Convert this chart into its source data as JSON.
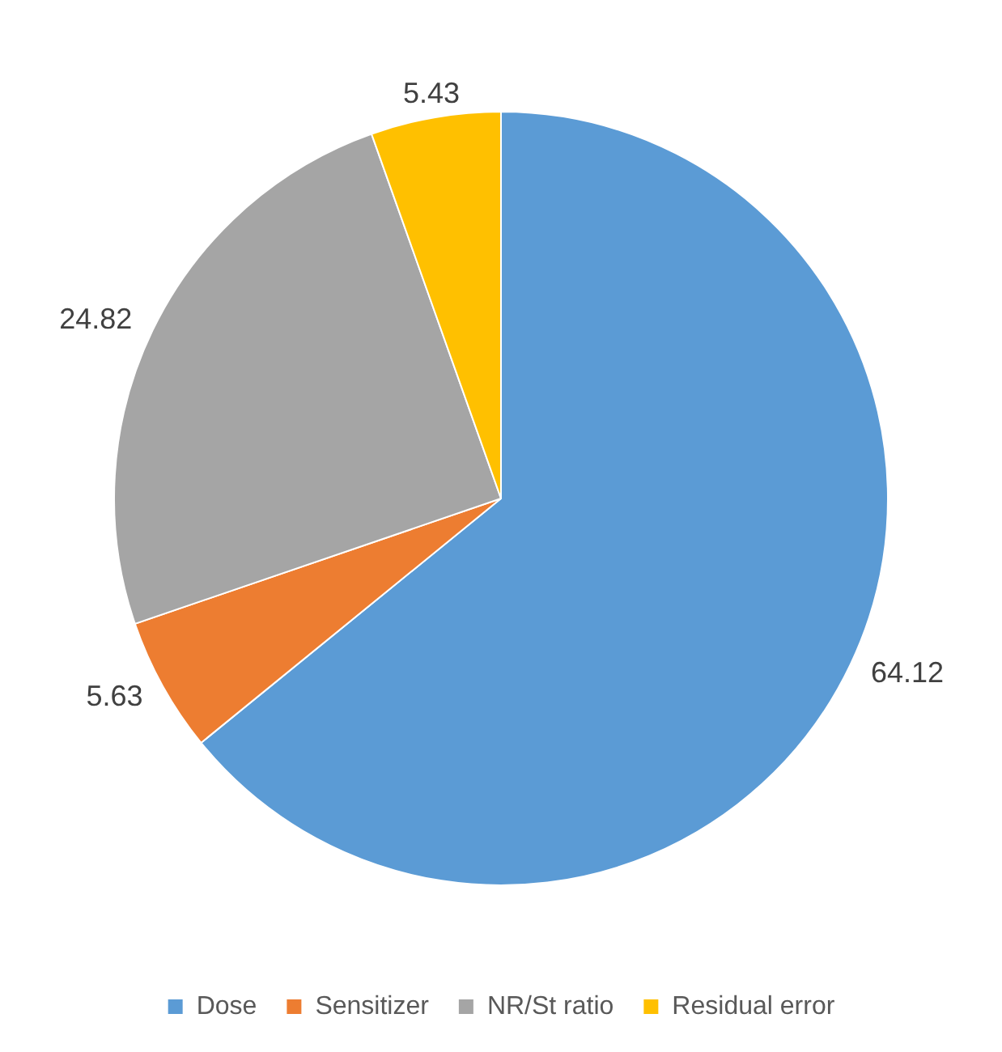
{
  "chart_data": {
    "type": "pie",
    "categories": [
      "Dose",
      "Sensitizer",
      "NR/St ratio",
      "Residual error"
    ],
    "values": [
      64.12,
      5.63,
      24.82,
      5.43
    ],
    "colors": [
      "#5b9bd5",
      "#ed7d31",
      "#a5a5a5",
      "#ffc000"
    ],
    "data_labels": true,
    "legend": "bottom"
  }
}
